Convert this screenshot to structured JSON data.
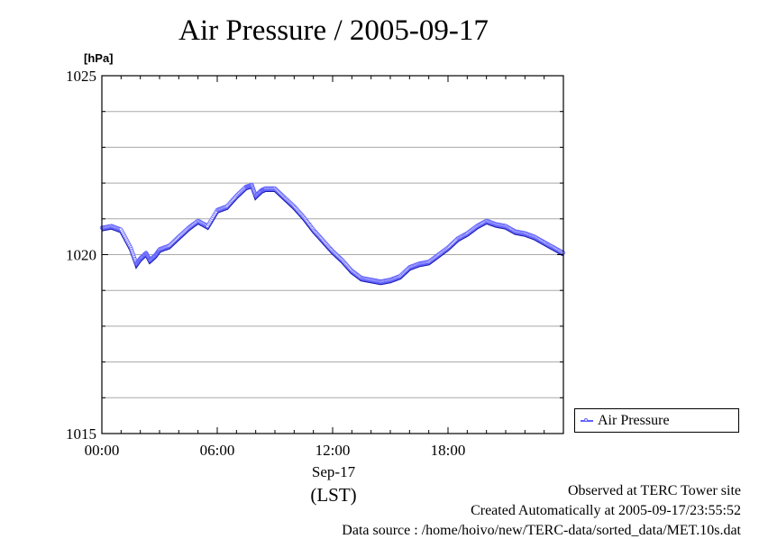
{
  "chart_data": {
    "type": "line",
    "title": "Air Pressure / 2005-09-17",
    "ylabel_unit": "[hPa]",
    "ylim": [
      1015,
      1025
    ],
    "xlim": [
      "00:00",
      "24:00"
    ],
    "y_ticks": [
      "1015",
      "1020",
      "1025"
    ],
    "x_ticks": [
      "00:00",
      "06:00",
      "12:00",
      "18:00"
    ],
    "x_date_label": "Sep-17",
    "x_timezone_label": "(LST)",
    "grid": true,
    "legend_position": "right",
    "series": [
      {
        "name": "Air Pressure",
        "color": "#6060ff",
        "x_hours": [
          0,
          0.5,
          1.0,
          1.5,
          1.8,
          2.0,
          2.3,
          2.5,
          2.8,
          3.0,
          3.5,
          4.0,
          4.5,
          5.0,
          5.5,
          6.0,
          6.5,
          7.0,
          7.5,
          7.8,
          8.0,
          8.3,
          8.5,
          9.0,
          9.5,
          10.0,
          10.5,
          11.0,
          11.5,
          12.0,
          12.5,
          13.0,
          13.5,
          14.0,
          14.5,
          15.0,
          15.5,
          16.0,
          16.5,
          17.0,
          17.5,
          18.0,
          18.5,
          19.0,
          19.5,
          20.0,
          20.5,
          21.0,
          21.5,
          22.0,
          22.5,
          23.0,
          23.5,
          24.0
        ],
        "values": [
          1020.7,
          1020.75,
          1020.65,
          1020.15,
          1019.7,
          1019.85,
          1020.0,
          1019.8,
          1019.95,
          1020.1,
          1020.2,
          1020.45,
          1020.7,
          1020.9,
          1020.75,
          1021.2,
          1021.3,
          1021.6,
          1021.85,
          1021.9,
          1021.6,
          1021.75,
          1021.8,
          1021.8,
          1021.55,
          1021.3,
          1021.0,
          1020.65,
          1020.35,
          1020.05,
          1019.8,
          1019.5,
          1019.3,
          1019.25,
          1019.2,
          1019.25,
          1019.35,
          1019.6,
          1019.7,
          1019.75,
          1019.95,
          1020.15,
          1020.4,
          1020.55,
          1020.75,
          1020.9,
          1020.8,
          1020.75,
          1020.6,
          1020.55,
          1020.45,
          1020.3,
          1020.15,
          1020.0
        ]
      }
    ],
    "legend_entries": [
      "Air Pressure"
    ]
  },
  "footer": {
    "observed": "Observed at TERC Tower site",
    "created": "Created Automatically at 2005-09-17/23:55:52",
    "source": "Data source : /home/hoivo/new/TERC-data/sorted_data/MET.10s.dat"
  }
}
